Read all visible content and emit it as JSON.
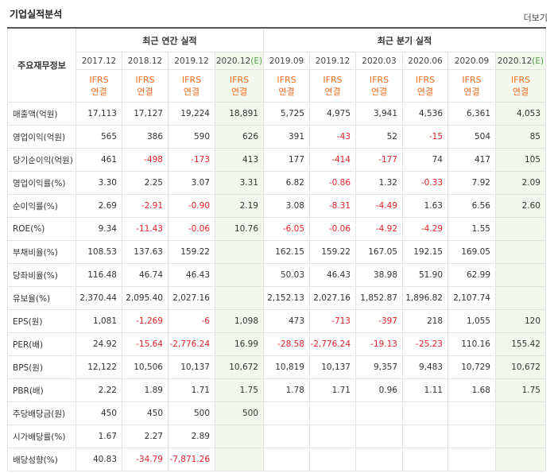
{
  "header": {
    "title": "기업실적분석",
    "more_label": "더보기"
  },
  "table": {
    "row_header_label": "주요재무정보",
    "group_annual": "최근 연간 실적",
    "group_quarterly": "최근 분기 실적",
    "periods": [
      {
        "label": "2017.12",
        "est": ""
      },
      {
        "label": "2018.12",
        "est": ""
      },
      {
        "label": "2019.12",
        "est": ""
      },
      {
        "label": "2020.12",
        "est": "(E)"
      },
      {
        "label": "2019.09",
        "est": ""
      },
      {
        "label": "2019.12",
        "est": ""
      },
      {
        "label": "2020.03",
        "est": ""
      },
      {
        "label": "2020.06",
        "est": ""
      },
      {
        "label": "2020.09",
        "est": ""
      },
      {
        "label": "2020.12",
        "est": "(E)"
      }
    ],
    "standard_line1": "IFRS",
    "standard_line2": "연결",
    "rows": [
      {
        "label": "매출액(억원)",
        "values": [
          "17,113",
          "17,127",
          "19,224",
          "18,891",
          "5,725",
          "4,975",
          "3,941",
          "4,536",
          "6,361",
          "4,053"
        ]
      },
      {
        "label": "영업이익(억원)",
        "values": [
          "565",
          "386",
          "590",
          "626",
          "391",
          "-43",
          "52",
          "-15",
          "504",
          "85"
        ]
      },
      {
        "label": "당기순이익(억원)",
        "values": [
          "461",
          "-498",
          "-173",
          "413",
          "177",
          "-414",
          "-177",
          "74",
          "417",
          "105"
        ]
      },
      {
        "label": "영업이익률(%)",
        "values": [
          "3.30",
          "2.25",
          "3.07",
          "3.31",
          "6.82",
          "-0.86",
          "1.32",
          "-0.33",
          "7.92",
          "2.09"
        ]
      },
      {
        "label": "순이익률(%)",
        "values": [
          "2.69",
          "-2.91",
          "-0.90",
          "2.19",
          "3.08",
          "-8.31",
          "-4.49",
          "1.63",
          "6.56",
          "2.60"
        ]
      },
      {
        "label": "ROE(%)",
        "values": [
          "9.34",
          "-11.43",
          "-0.06",
          "10.76",
          "-6.05",
          "-0.06",
          "-4.92",
          "-4.29",
          "1.55",
          ""
        ]
      },
      {
        "label": "부채비율(%)",
        "values": [
          "108.53",
          "137.63",
          "159.22",
          "",
          "162.15",
          "159.22",
          "167.05",
          "192.15",
          "169.05",
          ""
        ]
      },
      {
        "label": "당좌비율(%)",
        "values": [
          "116.48",
          "46.74",
          "46.43",
          "",
          "50.03",
          "46.43",
          "38.98",
          "51.90",
          "62.99",
          ""
        ]
      },
      {
        "label": "유보율(%)",
        "values": [
          "2,370.44",
          "2,095.40",
          "2,027.16",
          "",
          "2,152.13",
          "2,027.16",
          "1,852.87",
          "1,896.82",
          "2,107.74",
          ""
        ]
      },
      {
        "label": "EPS(원)",
        "values": [
          "1,081",
          "-1,269",
          "-6",
          "1,098",
          "473",
          "-713",
          "-397",
          "218",
          "1,055",
          "120"
        ]
      },
      {
        "label": "PER(배)",
        "values": [
          "24.92",
          "-15.64",
          "-2,776.24",
          "16.99",
          "-28.58",
          "-2,776.24",
          "-19.13",
          "-25.23",
          "110.16",
          "155.42"
        ]
      },
      {
        "label": "BPS(원)",
        "values": [
          "12,122",
          "10,506",
          "10,137",
          "10,672",
          "10,819",
          "10,137",
          "9,357",
          "9,483",
          "10,729",
          "10,672"
        ]
      },
      {
        "label": "PBR(배)",
        "values": [
          "2.22",
          "1.89",
          "1.71",
          "1.75",
          "1.78",
          "1.71",
          "0.96",
          "1.11",
          "1.68",
          "1.75"
        ]
      },
      {
        "label": "주당배당금(원)",
        "values": [
          "450",
          "450",
          "500",
          "500",
          "",
          "",
          "",
          "",
          "",
          ""
        ]
      },
      {
        "label": "시가배당률(%)",
        "values": [
          "1.67",
          "2.27",
          "2.89",
          "",
          "",
          "",
          "",
          "",
          "",
          ""
        ]
      },
      {
        "label": "배당성향(%)",
        "values": [
          "40.83",
          "-34.79",
          "-7,871.26",
          "",
          "",
          "",
          "",
          "",
          "",
          ""
        ]
      }
    ]
  }
}
